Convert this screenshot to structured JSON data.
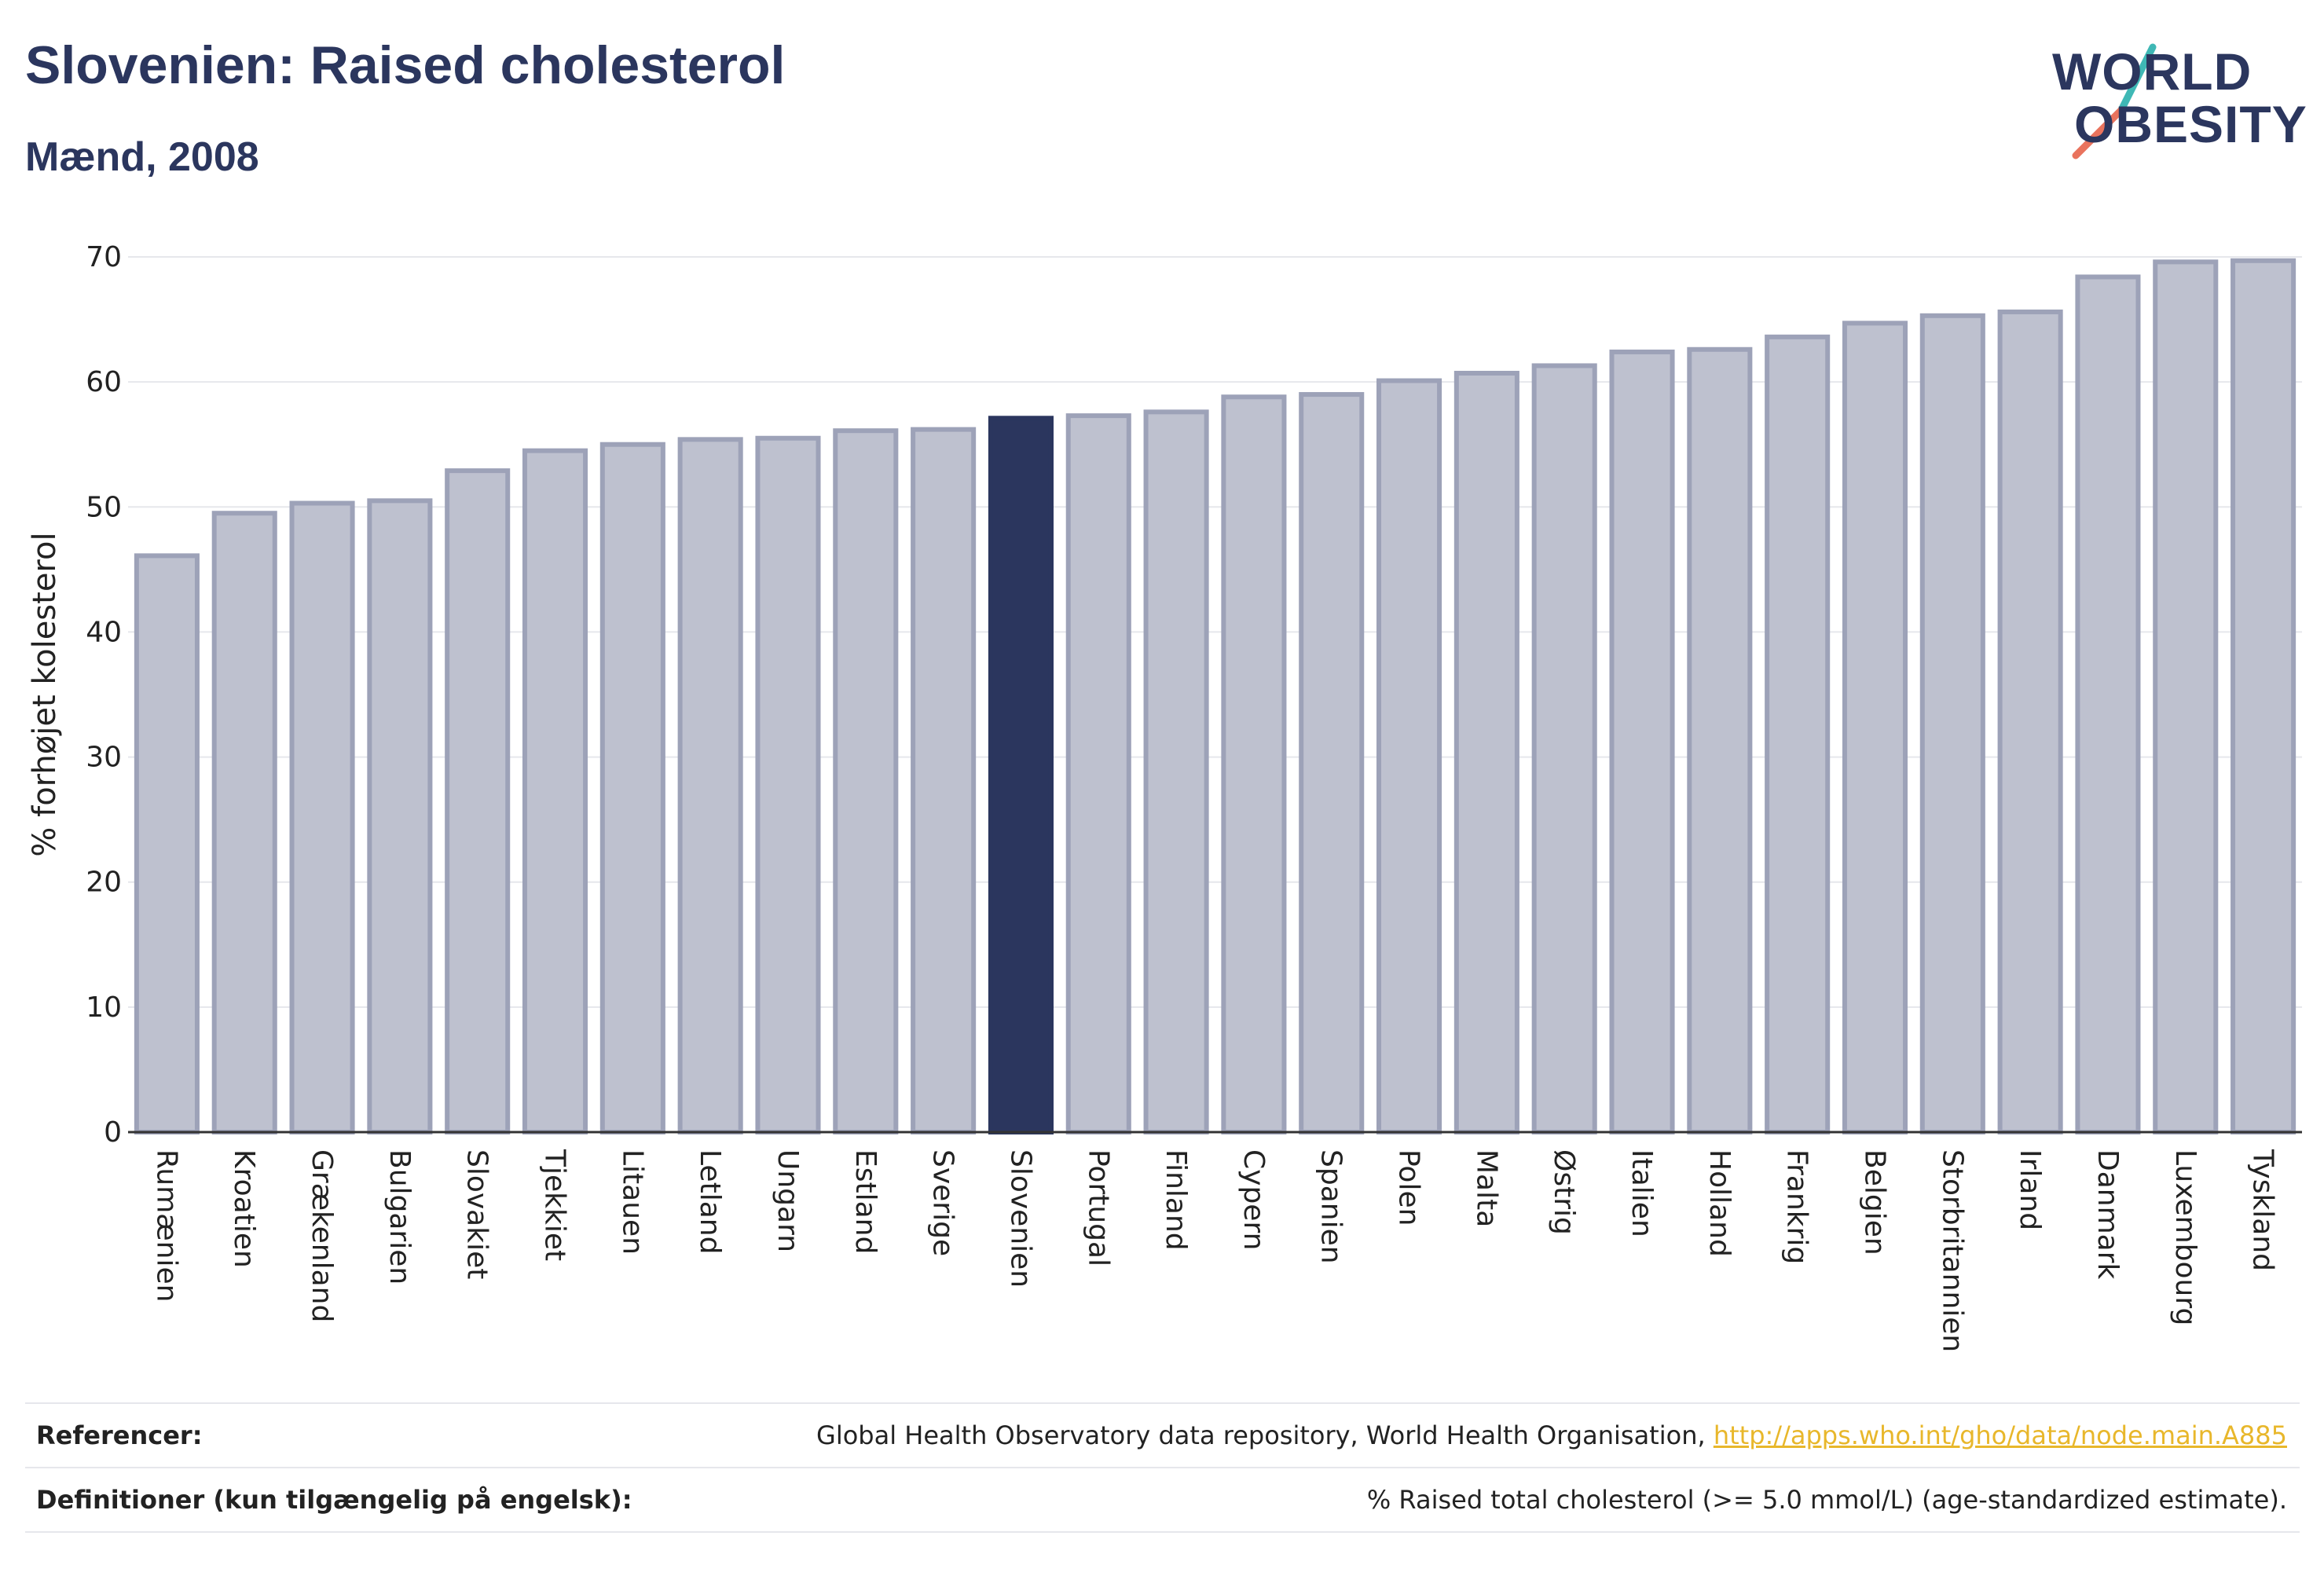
{
  "title": "Slovenien: Raised cholesterol",
  "subtitle": "Mænd, 2008",
  "logo": {
    "line1": "WORLD",
    "line2": "OBESITY"
  },
  "colors": {
    "bar": "#bec1cf",
    "bar_stroke": "#9da2b8",
    "highlight": "#2b365e",
    "grid": "#e6e7ec",
    "text": "#222222",
    "link": "#e8b72b"
  },
  "chart_data": {
    "type": "bar",
    "ylabel": "% forhøjet kolesterol",
    "ylim": [
      0,
      70
    ],
    "yticks": [
      0,
      10,
      20,
      30,
      40,
      50,
      60,
      70
    ],
    "grid": true,
    "highlight": "Slovenien",
    "categories": [
      "Rumænien",
      "Kroatien",
      "Grækenland",
      "Bulgarien",
      "Slovakiet",
      "Tjekkiet",
      "Litauen",
      "Letland",
      "Ungarn",
      "Estland",
      "Sverige",
      "Slovenien",
      "Portugal",
      "Finland",
      "Cypern",
      "Spanien",
      "Polen",
      "Malta",
      "Østrig",
      "Italien",
      "Holland",
      "Frankrig",
      "Belgien",
      "Storbritannien",
      "Irland",
      "Danmark",
      "Luxembourg",
      "Tyskland"
    ],
    "values": [
      46.1,
      49.5,
      50.3,
      50.5,
      52.9,
      54.5,
      55.0,
      55.4,
      55.5,
      56.1,
      56.2,
      57.1,
      57.3,
      57.6,
      58.8,
      59.0,
      60.1,
      60.7,
      61.3,
      62.4,
      62.6,
      63.6,
      64.7,
      65.3,
      65.6,
      68.4,
      69.6,
      69.7
    ]
  },
  "footer": {
    "references_label": "Referencer:",
    "references_text": "Global Health Observatory data repository, World Health Organisation, ",
    "references_link": "http://apps.who.int/gho/data/node.main.A885",
    "definitions_label": "Definitioner (kun tilgængelig på engelsk):",
    "definitions_text": "% Raised total cholesterol (>= 5.0 mmol/L) (age-standardized estimate)."
  }
}
